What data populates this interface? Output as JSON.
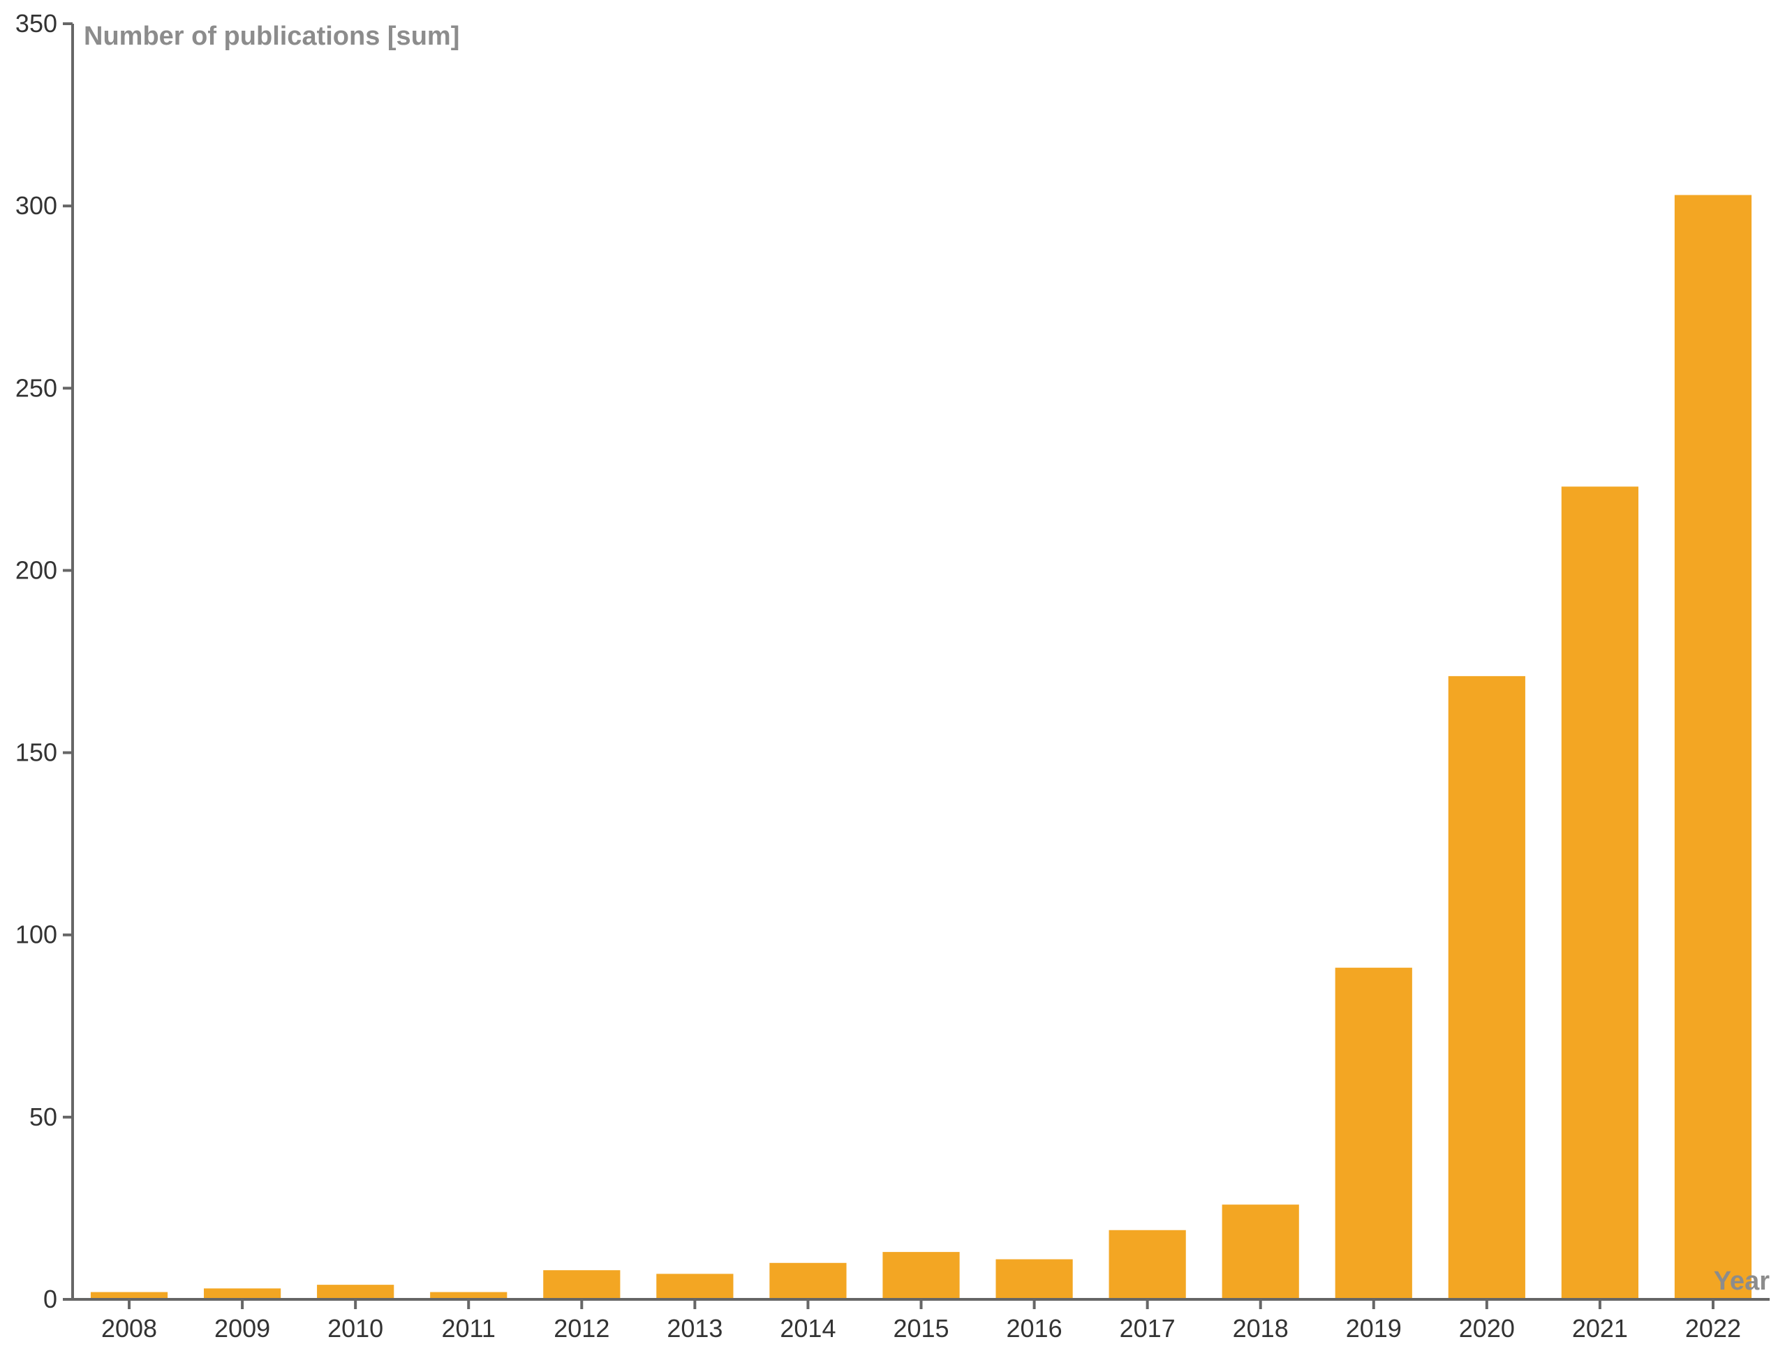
{
  "chart_data": {
    "type": "bar",
    "title": "",
    "ylabel": "Number of publications [sum]",
    "xlabel": "Year",
    "categories": [
      "2008",
      "2009",
      "2010",
      "2011",
      "2012",
      "2013",
      "2014",
      "2015",
      "2016",
      "2017",
      "2018",
      "2019",
      "2020",
      "2021",
      "2022"
    ],
    "values": [
      2,
      3,
      4,
      2,
      8,
      7,
      10,
      13,
      11,
      19,
      26,
      91,
      171,
      223,
      303
    ],
    "ylim": [
      0,
      350
    ],
    "yticks": [
      0,
      50,
      100,
      150,
      200,
      250,
      300,
      350
    ],
    "bar_color": "#f3a623",
    "axis_color": "#666666",
    "grid": false,
    "legend": "none"
  }
}
